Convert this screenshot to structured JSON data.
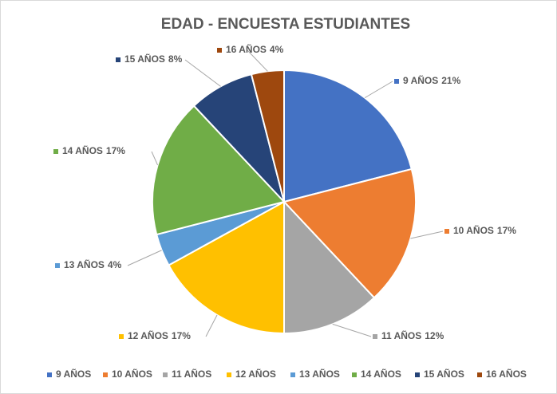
{
  "chart_data": {
    "type": "pie",
    "title": "EDAD - ENCUESTA ESTUDIANTES",
    "categories": [
      "9 AÑOS",
      "10 AÑOS",
      "11 AÑOS",
      "12 AÑOS",
      "13 AÑOS",
      "14 AÑOS",
      "15 AÑOS",
      "16 AÑOS"
    ],
    "values": [
      21,
      17,
      12,
      17,
      4,
      17,
      8,
      4
    ],
    "value_labels": [
      "21%",
      "17%",
      "12%",
      "17%",
      "4%",
      "17%",
      "8%",
      "4%"
    ],
    "colors": [
      "#4472c4",
      "#ed7d31",
      "#a5a5a5",
      "#ffc000",
      "#5b9bd5",
      "#70ad47",
      "#264478",
      "#9e480e"
    ],
    "legend": "bottom"
  }
}
